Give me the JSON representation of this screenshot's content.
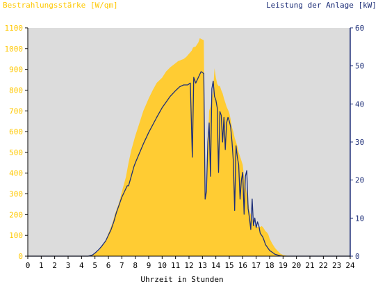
{
  "chart_data": {
    "type": "area",
    "left_axis": {
      "label": "Bestrahlungsstärke [W/qm]",
      "ylim": [
        0,
        1100
      ],
      "ticks": [
        0,
        100,
        200,
        300,
        400,
        500,
        600,
        700,
        800,
        900,
        1000,
        1100
      ],
      "color": "#ffc800"
    },
    "right_axis": {
      "label": "Leistung der Anlage [kW]",
      "ylim": [
        0,
        60
      ],
      "ticks": [
        0,
        10,
        20,
        30,
        40,
        50,
        60
      ],
      "color": "#1e2f78"
    },
    "x_axis": {
      "label": "Uhrzeit in Stunden",
      "xlim": [
        0,
        24
      ],
      "ticks": [
        0,
        1,
        2,
        3,
        4,
        5,
        6,
        7,
        8,
        9,
        10,
        11,
        12,
        13,
        14,
        15,
        16,
        17,
        18,
        19,
        20,
        21,
        22,
        23,
        24
      ]
    },
    "series": [
      {
        "name": "Bestrahlungsstärke",
        "axis": "left",
        "style": "area",
        "color": "#ffcc33",
        "x": [
          0,
          4.5,
          4.8,
          5.0,
          5.3,
          5.5,
          5.8,
          6.0,
          6.3,
          6.5,
          6.8,
          7.0,
          7.3,
          7.5,
          7.7,
          8.0,
          8.3,
          8.6,
          9.0,
          9.3,
          9.6,
          10.0,
          10.3,
          10.6,
          11.0,
          11.2,
          11.4,
          11.6,
          11.8,
          12.0,
          12.2,
          12.3,
          12.5,
          12.7,
          12.8,
          12.95,
          13.1,
          13.2,
          13.3,
          13.4,
          13.5,
          13.6,
          13.7,
          13.8,
          13.9,
          14.0,
          14.1,
          14.2,
          14.3,
          14.4,
          14.5,
          14.6,
          14.7,
          14.8,
          14.9,
          15.0,
          15.1,
          15.2,
          15.3,
          15.4,
          15.5,
          15.6,
          15.7,
          15.8,
          15.9,
          16.0,
          16.1,
          16.2,
          16.3,
          16.4,
          16.5,
          16.6,
          16.7,
          16.8,
          16.9,
          17.0,
          17.1,
          17.2,
          17.3,
          17.4,
          17.5,
          17.6,
          17.7,
          17.8,
          17.9,
          18.0,
          18.2,
          18.4,
          18.6,
          18.8,
          19.0,
          19.2,
          19.4,
          19.6,
          20.0,
          24
        ],
        "values": [
          0,
          0,
          5,
          12,
          28,
          45,
          75,
          110,
          160,
          205,
          260,
          310,
          380,
          450,
          510,
          580,
          640,
          700,
          760,
          800,
          835,
          860,
          890,
          910,
          930,
          940,
          945,
          950,
          960,
          975,
          990,
          1005,
          1010,
          1030,
          1050,
          1045,
          1040,
          300,
          320,
          520,
          700,
          720,
          760,
          800,
          905,
          860,
          830,
          820,
          820,
          800,
          785,
          760,
          740,
          720,
          705,
          690,
          660,
          620,
          600,
          570,
          550,
          530,
          500,
          480,
          460,
          440,
          380,
          340,
          300,
          260,
          220,
          200,
          180,
          160,
          150,
          145,
          140,
          140,
          140,
          145,
          140,
          130,
          120,
          115,
          105,
          85,
          60,
          40,
          25,
          12,
          6,
          3,
          1,
          0,
          0,
          0
        ]
      },
      {
        "name": "Leistung",
        "axis": "right",
        "style": "line",
        "color": "#1e2f78",
        "x": [
          0,
          4.5,
          4.8,
          5.0,
          5.3,
          5.5,
          5.8,
          6.0,
          6.2,
          6.4,
          6.6,
          6.8,
          7.0,
          7.2,
          7.4,
          7.5,
          7.7,
          7.9,
          8.0,
          8.3,
          8.6,
          9.0,
          9.3,
          9.6,
          10.0,
          10.3,
          10.6,
          11.0,
          11.3,
          11.6,
          11.9,
          12.1,
          12.25,
          12.35,
          12.5,
          12.7,
          12.9,
          13.1,
          13.2,
          13.3,
          13.4,
          13.5,
          13.6,
          13.7,
          13.8,
          13.9,
          14.0,
          14.1,
          14.2,
          14.3,
          14.4,
          14.5,
          14.6,
          14.7,
          14.8,
          14.9,
          15.0,
          15.1,
          15.2,
          15.3,
          15.4,
          15.5,
          15.6,
          15.7,
          15.8,
          15.9,
          16.0,
          16.1,
          16.2,
          16.3,
          16.4,
          16.5,
          16.6,
          16.7,
          16.8,
          16.9,
          17.0,
          17.1,
          17.2,
          17.3,
          17.4,
          17.5,
          17.6,
          17.7,
          17.8,
          17.9,
          18.0,
          18.2,
          18.4,
          18.6,
          18.8,
          19.0,
          19.2,
          19.4,
          19.6,
          20.0,
          24
        ],
        "values": [
          0,
          0,
          0.3,
          0.8,
          1.8,
          2.6,
          4.0,
          5.5,
          7.0,
          9.0,
          11.5,
          13.5,
          15.5,
          17.0,
          18.5,
          18.5,
          21.0,
          23.5,
          24.5,
          27.0,
          29.5,
          32.5,
          34.5,
          36.5,
          39.0,
          40.5,
          42.0,
          43.5,
          44.5,
          45.0,
          45.0,
          45.5,
          26.0,
          47.0,
          45.5,
          47.0,
          48.5,
          48.0,
          15.0,
          17.0,
          30.0,
          35.0,
          21.0,
          44.0,
          46.0,
          42.0,
          41.0,
          39.0,
          22.0,
          38.0,
          37.0,
          30.0,
          36.5,
          28.0,
          35.0,
          36.5,
          35.5,
          34.0,
          30.0,
          25.0,
          12.0,
          29.0,
          26.0,
          24.0,
          15.0,
          20.0,
          22.0,
          11.0,
          21.0,
          22.5,
          12.5,
          10.0,
          7.0,
          15.0,
          8.0,
          10.0,
          7.5,
          9.0,
          8.0,
          6.0,
          5.5,
          5.0,
          4.0,
          3.0,
          2.5,
          2.0,
          1.5,
          1.0,
          0.5,
          0.3,
          0.1,
          0,
          0,
          0,
          0,
          0,
          0
        ]
      }
    ]
  }
}
